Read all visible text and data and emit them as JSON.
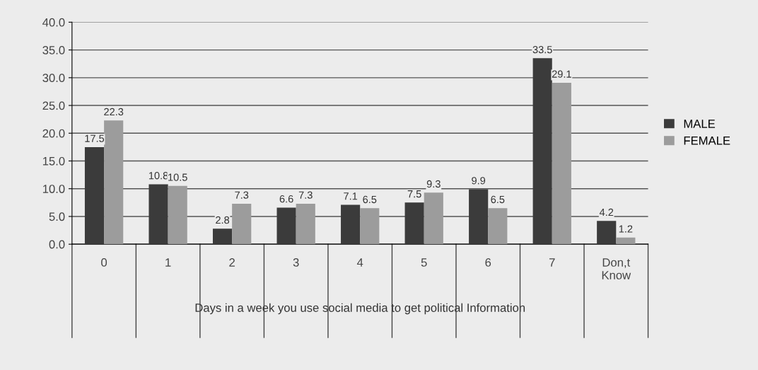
{
  "chart_data": {
    "type": "bar",
    "xlabel": "Days in a week you use social media to get political Information",
    "categories": [
      "0",
      "1",
      "2",
      "3",
      "4",
      "5",
      "6",
      "7",
      "Don,t\nKnow"
    ],
    "series": [
      {
        "name": "MALE",
        "color": "#3b3b3b",
        "values": [
          17.5,
          10.8,
          2.8,
          6.6,
          7.1,
          7.5,
          9.9,
          33.5,
          4.2
        ]
      },
      {
        "name": "FEMALE",
        "color": "#9c9c9c",
        "values": [
          22.3,
          10.5,
          7.3,
          7.3,
          6.5,
          9.3,
          6.5,
          29.1,
          1.2
        ]
      }
    ],
    "ylim": [
      0,
      40
    ],
    "yticks": [
      {
        "value": 0,
        "label": "0.0"
      },
      {
        "value": 5,
        "label": "5.0"
      },
      {
        "value": 10,
        "label": "10.0"
      },
      {
        "value": 15,
        "label": "15.0"
      },
      {
        "value": 20,
        "label": "20.0"
      },
      {
        "value": 25,
        "label": "25.0"
      },
      {
        "value": 30,
        "label": "30.0"
      },
      {
        "value": 35,
        "label": "35.0"
      },
      {
        "value": 40,
        "label": "40.0"
      }
    ],
    "grid": "y",
    "legend": "right",
    "data_labels": true
  }
}
